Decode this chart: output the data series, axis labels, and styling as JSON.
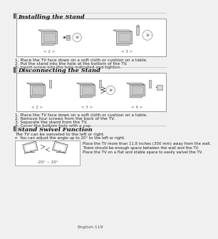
{
  "page_num": "English-119",
  "bg_color": "#f0f0f0",
  "content_bg": "#ffffff",
  "border_color": "#999999",
  "section1_title": "Installing the Stand",
  "section1_steps": [
    "1. Place the TV face down on a soft cloth or cushion on a table.",
    "2. Put the stand into the hole at the bottom of the TV.",
    "3. Insert screw into the hole indicated and tighten."
  ],
  "section1_labels": [
    "< 2 >",
    "< 3 >"
  ],
  "section2_title": "Disconnecting the Stand",
  "section2_steps": [
    "1. Place the TV face down on a soft cloth or cushion on a table.",
    "2. Remove four screws from the back of the TV.",
    "3. Separate the stand from the TV.",
    "4. Cover the bottom hole with a cap."
  ],
  "section2_labels": [
    "< 2 >",
    "< 3 >",
    "< 4 >"
  ],
  "section3_title": "Stand Swivel Function",
  "section3_line1": "The TV can be swiveled to the left or right.",
  "section3_line2": "n  You can adjust the angle up to 20° to the left or right.",
  "section3_right_text": "Place the TV more than 11.8 inches (300 mm) away from the wall.\nThere should be enough space between the wall and the TV.\nPlace the TV on a flat and stable space to easily swivel the TV.",
  "section3_angle_label": "-20° ~ 20°"
}
